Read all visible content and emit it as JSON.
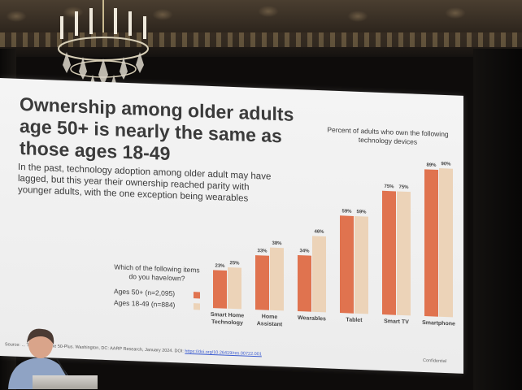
{
  "slide": {
    "title": "Ownership among older adults age 50+ is nearly the same as those ages 18-49",
    "subtitle": "In the past, technology adoption among older adult may have lagged, but this year their ownership reached parity with younger adults, with the one exception being wearables",
    "chart_heading": "Percent of adults who own the following technology devices",
    "question": "Which of the following items do you have/own?",
    "source_text": "Source: ... Trends and the 50-Plus. Washington, DC: AARP Research, January 2024. DOI:",
    "source_link": "https://doi.org/10.26419/res.00722.001",
    "confidential": "Confidential"
  },
  "colors": {
    "series_50plus": "#e0734f",
    "series_18_49": "#ecd3b8"
  },
  "chart_data": {
    "type": "bar",
    "title": "Percent of adults who own the following technology devices",
    "categories": [
      "Smart Home Technology",
      "Home Assistant",
      "Wearables",
      "Tablet",
      "Smart TV",
      "Smartphone"
    ],
    "category_lines": [
      [
        "Smart Home",
        "Technology"
      ],
      [
        "Home",
        "Assistant"
      ],
      [
        "Wearables"
      ],
      [
        "Tablet"
      ],
      [
        "Smart TV"
      ],
      [
        "Smartphone"
      ]
    ],
    "series": [
      {
        "name": "Ages 50+ (n=2,095)",
        "values": [
          23,
          33,
          34,
          59,
          75,
          89
        ],
        "labels": [
          "23%",
          "33%",
          "34%",
          "59%",
          "75%",
          "89%"
        ]
      },
      {
        "name": "Ages 18-49 (n=884)",
        "values": [
          25,
          38,
          46,
          59,
          75,
          90
        ],
        "labels": [
          "25%",
          "38%",
          "46%",
          "59%",
          "75%",
          "90%"
        ]
      }
    ],
    "ylim": [
      0,
      100
    ],
    "legend": "left"
  }
}
